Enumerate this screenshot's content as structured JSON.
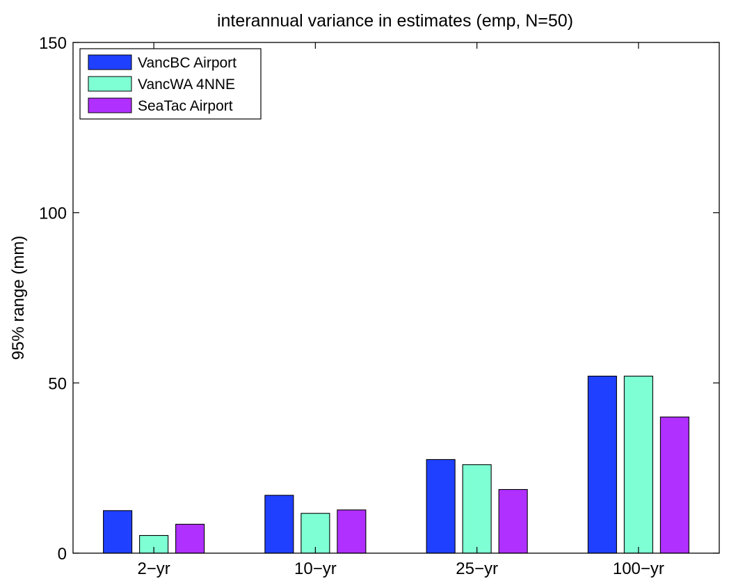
{
  "chart_data": {
    "type": "bar",
    "title": "interannual variance in estimates (emp, N=50)",
    "xlabel": "",
    "ylabel": "95% range (mm)",
    "categories": [
      "2−yr",
      "10−yr",
      "25−yr",
      "100−yr"
    ],
    "ylim": [
      0,
      150
    ],
    "yticks": [
      0,
      50,
      100,
      150
    ],
    "grid": false,
    "legend_position": "top-left",
    "series": [
      {
        "name": "VancBC Airport",
        "color": "#2040ff",
        "values": [
          12.5,
          17,
          27.5,
          52
        ]
      },
      {
        "name": "VancWA 4NNE",
        "color": "#7fffd4",
        "values": [
          5.2,
          11.7,
          26,
          52
        ]
      },
      {
        "name": "SeaTac Airport",
        "color": "#b030ff",
        "values": [
          8.5,
          12.7,
          18.7,
          40
        ]
      }
    ]
  }
}
